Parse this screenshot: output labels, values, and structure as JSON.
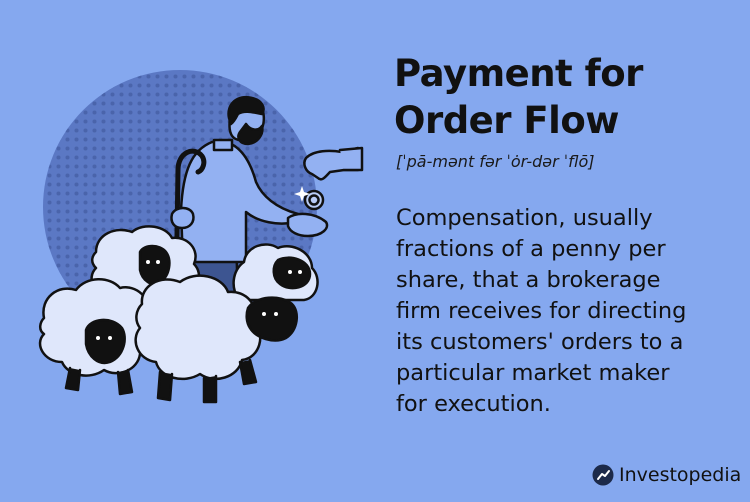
{
  "term": {
    "title_lines": [
      "Payment for",
      "Order Flow"
    ],
    "pronunciation": "[ˈpā-mənt fər ˈȯr-dər ˈflō]"
  },
  "definition": {
    "lines": [
      "Compensation, usually",
      "fractions of a penny per",
      "share, that a brokerage",
      "firm receives for directing",
      "its customers' orders to a",
      "particular market maker",
      "for execution."
    ]
  },
  "brand": {
    "name": "Investopedia"
  },
  "illustration": {
    "subject": "shepherd-with-sheep-handing-coin",
    "colors": {
      "background": "#85a8ef",
      "circle": "#5b78c4",
      "outline": "#111111"
    }
  }
}
